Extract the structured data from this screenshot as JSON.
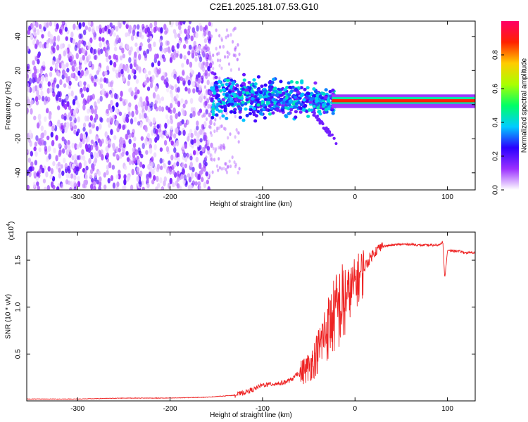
{
  "title": "C2E1.2025.181.07.53.G10",
  "chart_data": [
    {
      "type": "heatmap",
      "xlabel": "Height of straight line (km)",
      "ylabel": "Frequency (Hz)",
      "xlim": [
        -355,
        130
      ],
      "ylim": [
        -50,
        49
      ],
      "xticks": [
        -300,
        -200,
        -100,
        0,
        100
      ],
      "yticks": [
        -40,
        -20,
        0,
        20,
        40
      ],
      "colorbar": {
        "label": "Normalized spectral amplitude",
        "range": [
          0,
          1
        ],
        "ticks": [
          0.0,
          0.2,
          0.4,
          0.6,
          0.8
        ],
        "tick_labels": [
          "0.0",
          "0.2",
          "0.4",
          "0.6",
          "0.8"
        ],
        "colormap": [
          "#ffffff",
          "#9b30ff",
          "#2a00ff",
          "#00ccff",
          "#00ff66",
          "#aaff00",
          "#ffcc00",
          "#ff2200",
          "#ff0066"
        ]
      },
      "structure": [
        {
          "region": "noise",
          "x_range": [
            -355,
            -155
          ],
          "freq_range": [
            -50,
            49
          ],
          "amplitude": [
            0.0,
            0.2
          ]
        },
        {
          "region": "spreading",
          "x_range": [
            -155,
            -20
          ],
          "freq_center": [
            5,
            2
          ],
          "freq_spread": [
            12,
            6
          ],
          "amplitude": [
            0.15,
            0.45
          ]
        },
        {
          "region": "tail",
          "x_range": [
            -45,
            -20
          ],
          "freq_range": [
            -5,
            -22
          ],
          "amplitude": [
            0.1,
            0.2
          ]
        },
        {
          "region": "carrier",
          "x_range": [
            -25,
            130
          ],
          "freq_center": [
            2,
            3
          ],
          "amplitude": [
            0.8,
            1.0
          ]
        }
      ]
    },
    {
      "type": "line",
      "xlabel": "Height of straight line (km)",
      "ylabel": "SNR (10 * v/v)",
      "y_multiplier": "(x10",
      "y_multiplier_exp": "4",
      "y_multiplier_close": ")",
      "xlim": [
        -355,
        130
      ],
      "ylim": [
        0,
        1.8
      ],
      "xticks": [
        -300,
        -200,
        -100,
        0,
        100
      ],
      "xtick_labels": [
        "-300",
        "-200",
        "-100",
        "0",
        "100"
      ],
      "yticks": [
        0.5,
        1.0,
        1.5
      ],
      "ytick_labels": [
        "0.5",
        "1.0",
        "1.5"
      ],
      "color": "#ee2222",
      "series": [
        {
          "x": [
            -355,
            -300,
            -250,
            -200,
            -160,
            -130,
            -110,
            -100,
            -90,
            -80,
            -70,
            -60,
            -50,
            -45,
            -40,
            -35,
            -30,
            -25,
            -20,
            -15,
            -10,
            -5,
            0,
            5,
            10,
            15,
            20,
            25,
            30,
            40,
            50,
            60,
            70,
            80,
            90,
            95,
            97,
            100,
            110,
            120,
            130
          ],
          "y": [
            0.02,
            0.02,
            0.03,
            0.03,
            0.04,
            0.06,
            0.12,
            0.17,
            0.18,
            0.19,
            0.22,
            0.3,
            0.38,
            0.45,
            0.55,
            0.7,
            0.8,
            0.9,
            1.0,
            1.05,
            1.12,
            1.2,
            1.28,
            1.35,
            1.42,
            1.5,
            1.58,
            1.62,
            1.65,
            1.66,
            1.67,
            1.67,
            1.66,
            1.66,
            1.66,
            1.7,
            1.3,
            1.6,
            1.6,
            1.58,
            1.58
          ]
        }
      ]
    }
  ]
}
